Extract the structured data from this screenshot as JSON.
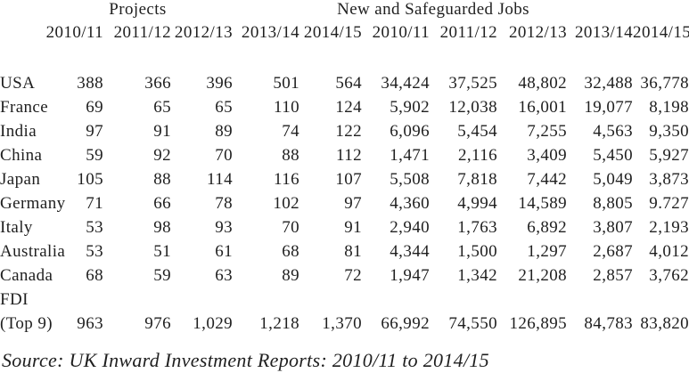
{
  "page": {
    "background_color": "#ffffff",
    "text_color": "#1f1f1f"
  },
  "table": {
    "group_headers": [
      {
        "label": "Projects"
      },
      {
        "label": "New and Safeguarded Jobs"
      }
    ],
    "year_headers": [
      "2010/11",
      "2011/12",
      "2012/13",
      "2013/14",
      "2014/15",
      "2010/11",
      "2011/12",
      "2012/13",
      "2013/14",
      "2014/15"
    ],
    "rows": [
      {
        "label": "USA",
        "values": [
          "388",
          "366",
          "396",
          "501",
          "564",
          "34,424",
          "37,525",
          "48,802",
          "32,488",
          "36,778"
        ]
      },
      {
        "label": "France",
        "values": [
          "69",
          "65",
          "65",
          "110",
          "124",
          "5,902",
          "12,038",
          "16,001",
          "19,077",
          "8,198"
        ]
      },
      {
        "label": "India",
        "values": [
          "97",
          "91",
          "89",
          "74",
          "122",
          "6,096",
          "5,454",
          "7,255",
          "4,563",
          "9,350"
        ]
      },
      {
        "label": "China",
        "values": [
          "59",
          "92",
          "70",
          "88",
          "112",
          "1,471",
          "2,116",
          "3,409",
          "5,450",
          "5,927"
        ]
      },
      {
        "label": "Japan",
        "values": [
          "105",
          "88",
          "114",
          "116",
          "107",
          "5,508",
          "7,818",
          "7,442",
          "5,049",
          "3,873"
        ]
      },
      {
        "label": "Germany",
        "values": [
          "71",
          "66",
          "78",
          "102",
          "97",
          "4,360",
          "4,994",
          "14,589",
          "8,805",
          "9.727"
        ]
      },
      {
        "label": "Italy",
        "values": [
          "53",
          "98",
          "93",
          "70",
          "91",
          "2,940",
          "1,763",
          "6,892",
          "3,807",
          "2,193"
        ]
      },
      {
        "label": "Australia",
        "values": [
          "53",
          "51",
          "61",
          "68",
          "81",
          "4,344",
          "1,500",
          "1,297",
          "2,687",
          "4,012"
        ]
      },
      {
        "label": "Canada",
        "values": [
          "68",
          "59",
          "63",
          "89",
          "72",
          "1,947",
          "1,342",
          "21,208",
          "2,857",
          "3,762"
        ]
      },
      {
        "label": "FDI",
        "values": [
          "",
          "",
          "",
          "",
          "",
          "",
          "",
          "",
          "",
          ""
        ]
      },
      {
        "label": "(Top 9)",
        "values": [
          "963",
          "976",
          "1,029",
          "1,218",
          "1,370",
          "66,992",
          "74,550",
          "126,895",
          "84,783",
          "83,820"
        ]
      }
    ]
  },
  "source": "Source: UK Inward Investment Reports: 2010/11 to 2014/15"
}
